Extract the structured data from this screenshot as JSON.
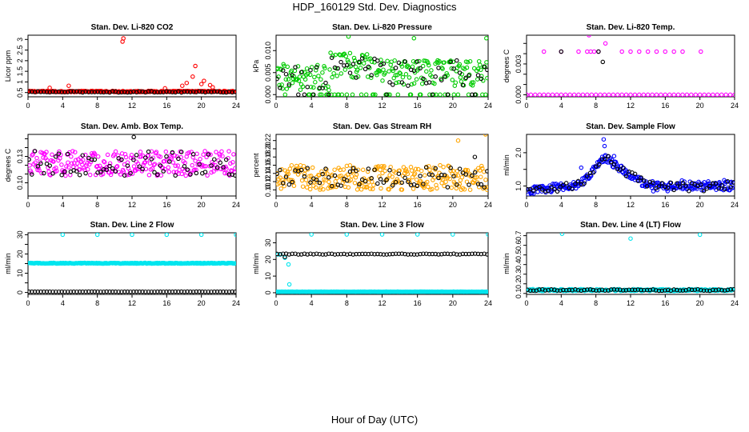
{
  "page": {
    "title": "HDP_160129  Std. Dev. Diagnostics",
    "x_axis_label": "Hour of Day (UTC)"
  },
  "chart_data": [
    {
      "type": "scatter",
      "title": "Stan. Dev. Li-820 CO2",
      "ylabel": "Licor ppm",
      "xlim": [
        0,
        24
      ],
      "ylim": [
        0.3,
        3.2
      ],
      "xticks": [
        0,
        4,
        8,
        12,
        16,
        20,
        24
      ],
      "yticks": [
        0.5,
        1.0,
        1.5,
        2.0,
        2.5,
        3.0
      ],
      "yticklabels": [
        "0.5",
        "1",
        "1.5",
        "2",
        "2.5",
        "3"
      ],
      "gen": "const",
      "series": [
        {
          "color": "#ff0000",
          "level": 0.55,
          "spread": 0.06,
          "outliers": [
            [
              2.5,
              0.72
            ],
            [
              4.7,
              0.82
            ],
            [
              10.9,
              2.9
            ],
            [
              11.0,
              3.05
            ],
            [
              15.8,
              0.7
            ],
            [
              17.8,
              0.82
            ],
            [
              18.3,
              0.95
            ],
            [
              19.0,
              1.25
            ],
            [
              19.3,
              1.75
            ],
            [
              20.0,
              0.9
            ],
            [
              20.3,
              1.05
            ],
            [
              21.0,
              0.85
            ],
            [
              21.3,
              0.75
            ]
          ]
        },
        {
          "color": "#000000",
          "level": 0.53,
          "spread": 0.05,
          "outliers": []
        }
      ]
    },
    {
      "type": "scatter",
      "title": "Stan. Dev. Li-820 Pressure",
      "ylabel": "kPa",
      "xlim": [
        0,
        24
      ],
      "ylim": [
        -0.0005,
        0.0135
      ],
      "xticks": [
        0,
        4,
        8,
        12,
        16,
        20,
        24
      ],
      "yticks": [
        0.0,
        0.005,
        0.01
      ],
      "yticklabels": [
        "0.000",
        "0.005",
        "0.010"
      ],
      "gen": "pressure",
      "series": [
        {
          "color": "#00cc00",
          "outliers": [
            [
              8.2,
              0.0132
            ],
            [
              15.6,
              0.0128
            ],
            [
              23.8,
              0.0128
            ]
          ]
        },
        {
          "color": "#000000",
          "outliers": []
        }
      ]
    },
    {
      "type": "scatter",
      "title": "Stan. Dev. Li-820 Temp.",
      "ylabel": "degrees C",
      "xlim": [
        0,
        24
      ],
      "ylim": [
        -0.0002,
        0.0058
      ],
      "xticks": [
        0,
        4,
        8,
        12,
        16,
        20,
        24
      ],
      "yticks": [
        0.0,
        0.001,
        0.002,
        0.003,
        0.004,
        0.005
      ],
      "yticklabels": [
        "0.000",
        "",
        "",
        "0.003",
        "",
        ""
      ],
      "gen": "temp",
      "series": [
        {
          "color": "#ff00ff",
          "points": [
            [
              0,
              0
            ],
            [
              2,
              0.0042
            ],
            [
              4,
              0.0042
            ],
            [
              6,
              0.0042
            ],
            [
              7,
              0.0042
            ],
            [
              7.4,
              0.0042
            ],
            [
              7.8,
              0.0042
            ],
            [
              8.3,
              0.0042
            ],
            [
              7.2,
              0.0058
            ],
            [
              9.1,
              0.005
            ],
            [
              11,
              0.0042
            ],
            [
              12,
              0.0042
            ],
            [
              13,
              0.0042
            ],
            [
              14,
              0.0042
            ],
            [
              15,
              0.0042
            ],
            [
              16,
              0.0042
            ],
            [
              17,
              0.0042
            ],
            [
              18,
              0.0042
            ],
            [
              20.1,
              0.0042
            ]
          ]
        },
        {
          "color": "#000000",
          "points": [
            [
              4,
              0.0042
            ],
            [
              8.3,
              0.0042
            ],
            [
              8.8,
              0.0032
            ]
          ]
        }
      ]
    },
    {
      "type": "scatter",
      "title": "Stan. Dev. Amb. Box Temp.",
      "ylabel": "degrees C",
      "xlim": [
        0,
        24
      ],
      "ylim": [
        0.085,
        0.155
      ],
      "xticks": [
        0,
        4,
        8,
        12,
        16,
        20,
        24
      ],
      "yticks": [
        0.1,
        0.11,
        0.12,
        0.13,
        0.14,
        0.15
      ],
      "yticklabels": [
        "0.10",
        "",
        "",
        "0.13",
        "",
        ""
      ],
      "gen": "noise",
      "series": [
        {
          "color": "#ff00ff",
          "level": 0.122,
          "spread": 0.028,
          "outliers": []
        },
        {
          "color": "#000000",
          "level": 0.122,
          "spread": 0.028,
          "outliers": [
            [
              12.2,
              0.152
            ]
          ]
        }
      ]
    },
    {
      "type": "scatter",
      "title": "Stan. Dev. Gas Stream RH",
      "ylabel": "percent",
      "xlim": [
        0,
        24
      ],
      "ylim": [
        0.085,
        0.235
      ],
      "xticks": [
        0,
        4,
        8,
        12,
        16,
        20,
        24
      ],
      "yticks": [
        0.1,
        0.12,
        0.14,
        0.16,
        0.18,
        0.2,
        0.22
      ],
      "yticklabels": [
        "0.10",
        "0.12",
        "0.14",
        "0.16",
        "0.18",
        "0.20",
        "0.22"
      ],
      "gen": "noise",
      "series": [
        {
          "color": "#ffa500",
          "level": 0.13,
          "spread": 0.06,
          "outliers": [
            [
              23.7,
              0.235
            ],
            [
              20.6,
              0.22
            ]
          ]
        },
        {
          "color": "#000000",
          "level": 0.13,
          "spread": 0.05,
          "outliers": [
            [
              22.5,
              0.18
            ]
          ]
        }
      ]
    },
    {
      "type": "scatter",
      "title": "Stan. Dev. Sample Flow",
      "ylabel": "ml/min",
      "xlim": [
        0,
        24
      ],
      "ylim": [
        0.7,
        2.55
      ],
      "xticks": [
        0,
        4,
        8,
        12,
        16,
        20,
        24
      ],
      "yticks": [
        1.0,
        1.5,
        2.0
      ],
      "yticklabels": [
        "1.0",
        "",
        "2.0"
      ],
      "gen": "flow",
      "series": [
        {
          "color": "#0000ff",
          "outliers": [
            [
              8.9,
              2.4
            ],
            [
              9.0,
              2.2
            ],
            [
              6.3,
              1.55
            ],
            [
              10.1,
              1.9
            ]
          ]
        },
        {
          "color": "#000000",
          "outliers": []
        }
      ]
    },
    {
      "type": "scatter",
      "title": "Stan. Dev. Line 2 Flow",
      "ylabel": "ml/min",
      "xlim": [
        0,
        24
      ],
      "ylim": [
        -1,
        31
      ],
      "xticks": [
        0,
        4,
        8,
        12,
        16,
        20,
        24
      ],
      "yticks": [
        0,
        5,
        10,
        15,
        20,
        25,
        30
      ],
      "yticklabels": [
        "0",
        "",
        "10",
        "",
        "20",
        "",
        "30"
      ],
      "gen": "const",
      "series": [
        {
          "color": "#00e5ee",
          "level": 15.2,
          "spread": 0.4,
          "outliers": [
            [
              4,
              30
            ],
            [
              8,
              30
            ],
            [
              12,
              30
            ],
            [
              16,
              30
            ],
            [
              20,
              30
            ],
            [
              24,
              30
            ]
          ]
        },
        {
          "color": "#000000",
          "level": 0.4,
          "spread": 0.1,
          "outliers": []
        }
      ]
    },
    {
      "type": "scatter",
      "title": "Stan. Dev. Line 3 Flow",
      "ylabel": "ml/min",
      "xlim": [
        0,
        24
      ],
      "ylim": [
        -1,
        36
      ],
      "xticks": [
        0,
        4,
        8,
        12,
        16,
        20,
        24
      ],
      "yticks": [
        0,
        10,
        20,
        30
      ],
      "yticklabels": [
        "0",
        "10",
        "20",
        "30"
      ],
      "gen": "const",
      "series": [
        {
          "color": "#00e5ee",
          "level": 0.6,
          "spread": 0.2,
          "outliers": [
            [
              0.2,
              23
            ],
            [
              0.5,
              23
            ],
            [
              1.0,
              21
            ],
            [
              1.4,
              17
            ],
            [
              1.5,
              5
            ],
            [
              4,
              35
            ],
            [
              8,
              35
            ],
            [
              12,
              35
            ],
            [
              16,
              35
            ],
            [
              20,
              35
            ],
            [
              24,
              35
            ]
          ]
        },
        {
          "color": "#000000",
          "level": 23.2,
          "spread": 0.5,
          "outliers": [
            [
              1.0,
              21.5
            ]
          ]
        }
      ]
    },
    {
      "type": "scatter",
      "title": "Stan. Dev. Line 4 (LT) Flow",
      "ylabel": "ml/min",
      "xlim": [
        0,
        24
      ],
      "ylim": [
        0.09,
        0.73
      ],
      "xticks": [
        0,
        4,
        8,
        12,
        16,
        20,
        24
      ],
      "yticks": [
        0.1,
        0.2,
        0.3,
        0.4,
        0.5,
        0.6,
        0.7
      ],
      "yticklabels": [
        "0.1",
        "0.2",
        "0.3",
        "0.4",
        "0.5",
        "0.6",
        "0.7"
      ],
      "gen": "const",
      "series": [
        {
          "color": "#00e5ee",
          "level": 0.135,
          "spread": 0.02,
          "outliers": [
            [
              4.1,
              0.72
            ],
            [
              12,
              0.67
            ],
            [
              20,
              0.71
            ]
          ]
        },
        {
          "color": "#000000",
          "level": 0.135,
          "spread": 0.015,
          "outliers": []
        }
      ]
    }
  ]
}
